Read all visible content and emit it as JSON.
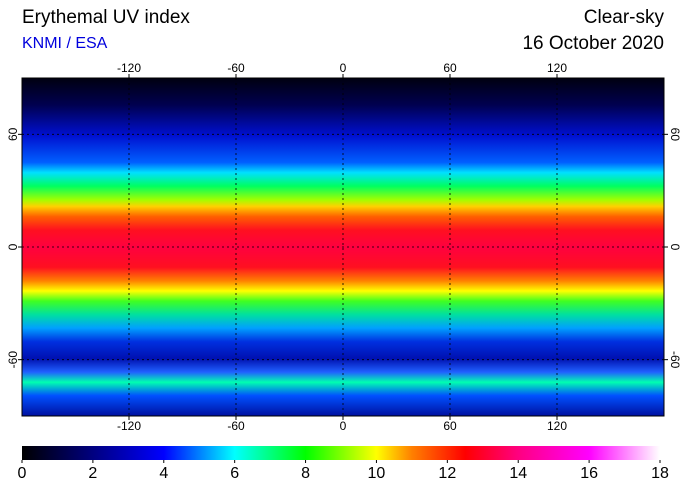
{
  "header": {
    "title": "Erythemal UV index",
    "subtitle": "KNMI / ESA",
    "right_title": "Clear-sky",
    "date": "16 October 2020"
  },
  "map": {
    "lon_range": [
      -180,
      180
    ],
    "lat_range": [
      -90,
      90
    ],
    "lon_ticks": [
      -120,
      -60,
      0,
      60,
      120
    ],
    "lat_ticks": [
      60,
      0,
      -60
    ]
  },
  "colorbar": {
    "range": [
      0,
      18
    ],
    "ticks": [
      0,
      2,
      4,
      6,
      8,
      10,
      12,
      14,
      16,
      18
    ],
    "stops": [
      {
        "value": 0,
        "color": "#000000"
      },
      {
        "value": 2,
        "color": "#000080"
      },
      {
        "value": 4,
        "color": "#0000ff"
      },
      {
        "value": 6,
        "color": "#00ffff"
      },
      {
        "value": 8,
        "color": "#00ff00"
      },
      {
        "value": 10,
        "color": "#ffff00"
      },
      {
        "value": 11,
        "color": "#ff8000"
      },
      {
        "value": 12.5,
        "color": "#ff0000"
      },
      {
        "value": 14,
        "color": "#ff0080"
      },
      {
        "value": 16,
        "color": "#ff00ff"
      },
      {
        "value": 18,
        "color": "#ffffff"
      }
    ]
  }
}
